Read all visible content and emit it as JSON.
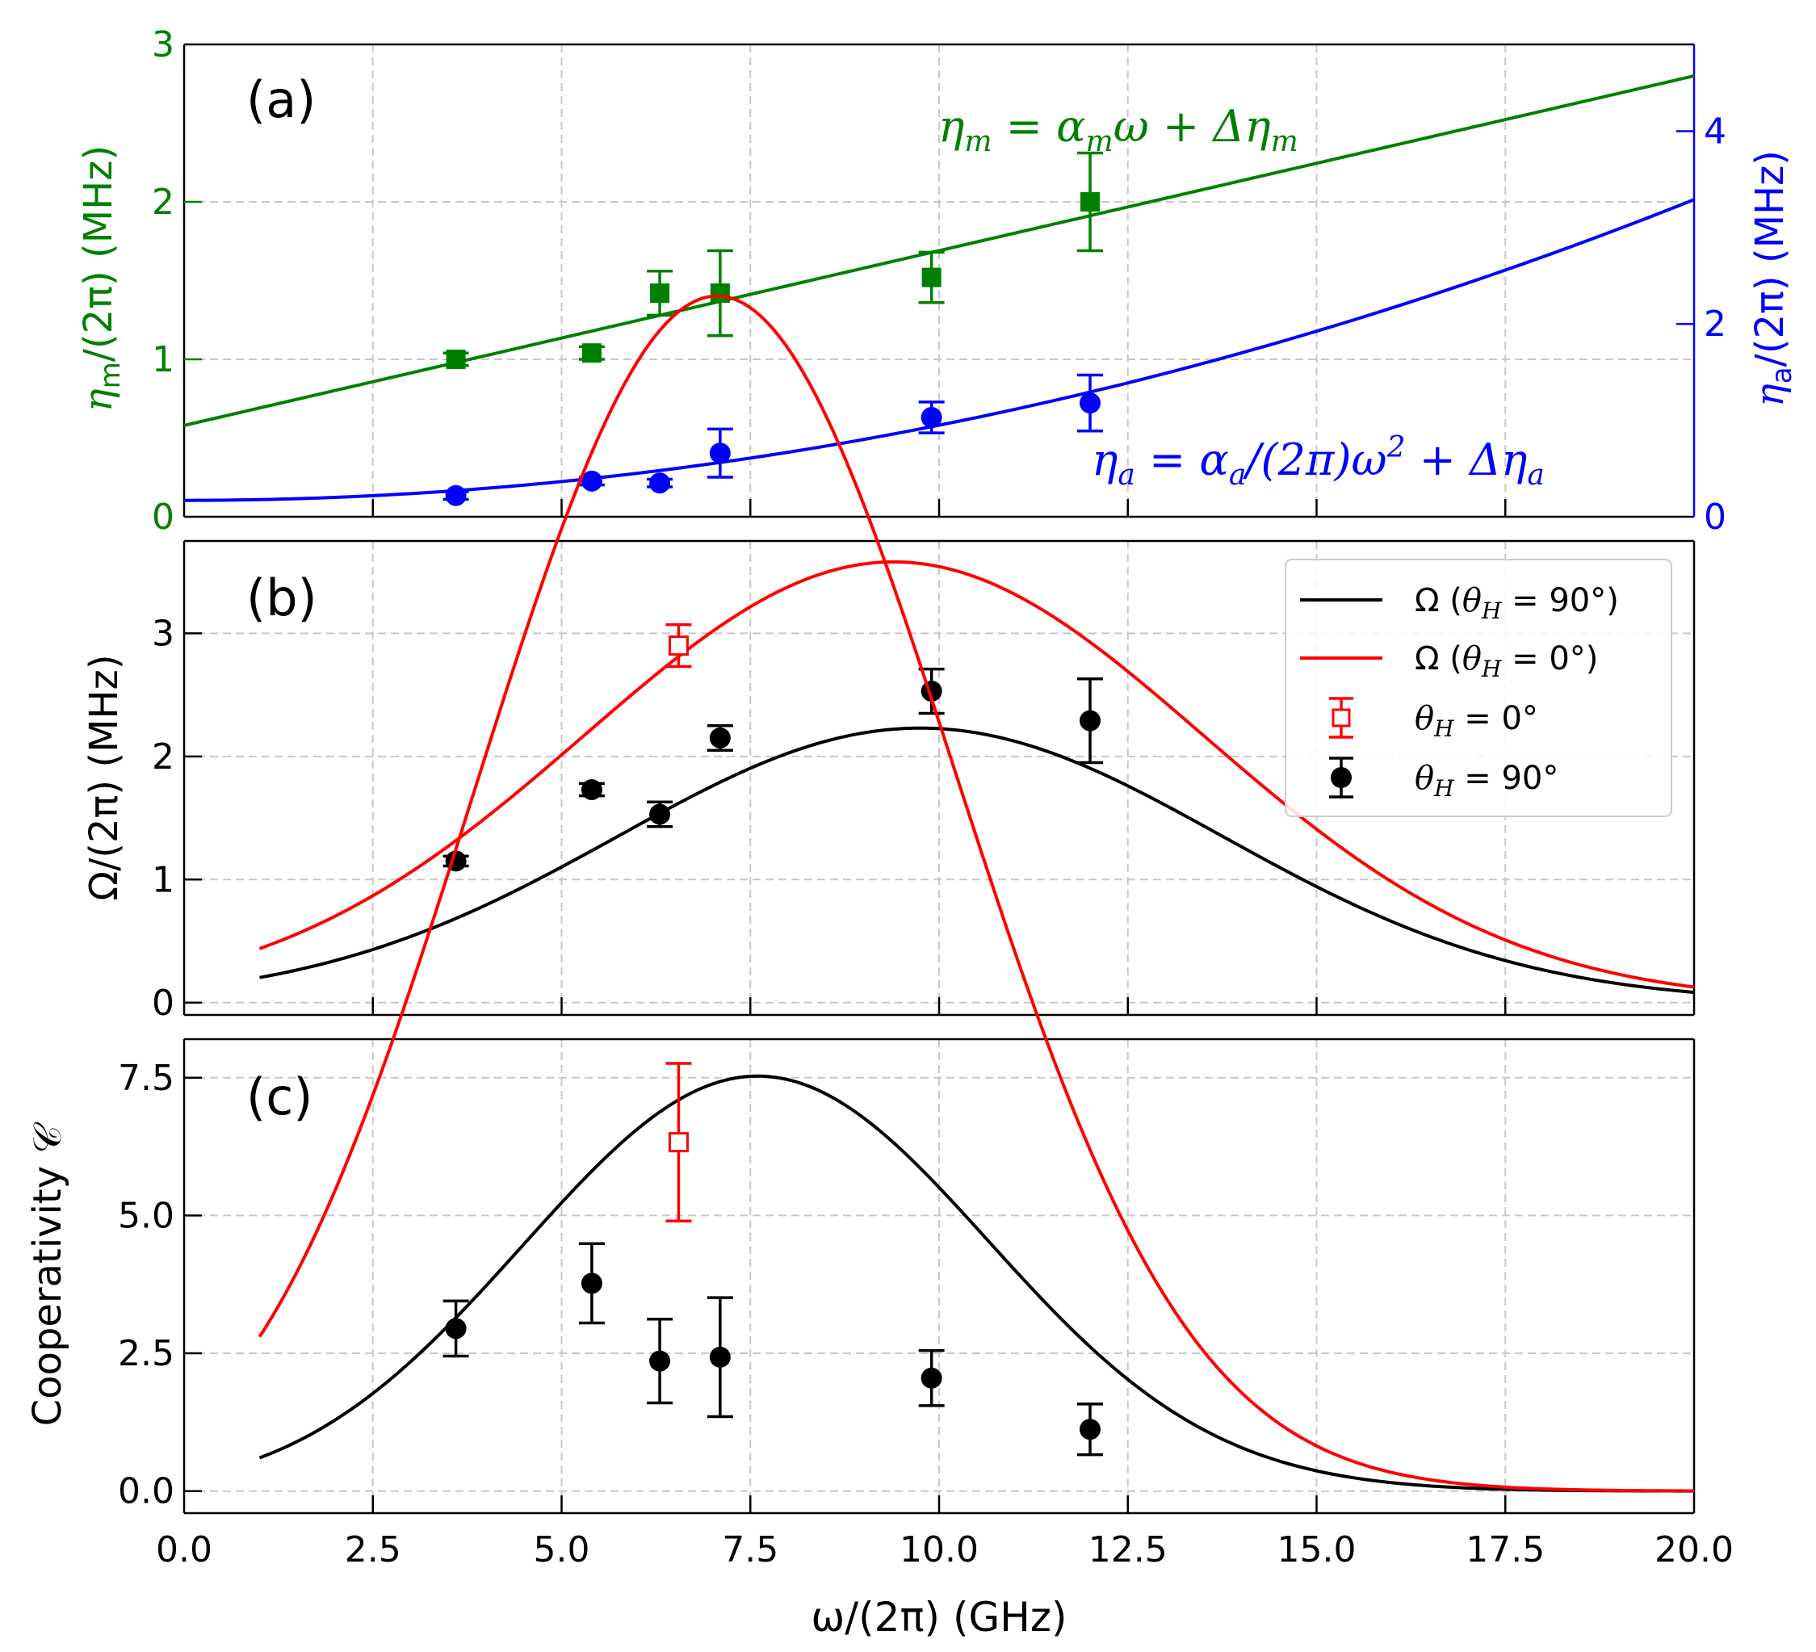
{
  "chart_data": [
    {
      "panel": "(a)",
      "type": "scatter",
      "xlim": [
        0,
        20
      ],
      "ylim": [
        0,
        3
      ],
      "ylim_right": [
        0,
        4.9
      ],
      "grid": true,
      "ylabel_left": {
        "main": "η",
        "sub": "m",
        "tail": "/(2π) (MHz)"
      },
      "ylabel_right": {
        "main": "η",
        "sub": "a",
        "tail": "/(2π) (MHz)"
      },
      "yticks_left": [
        "0",
        "1",
        "2",
        "3"
      ],
      "yticks_right": [
        "0",
        "2",
        "4"
      ],
      "annotations": {
        "eta_m_formula": "η_m = α_m ω + Δη_m",
        "eta_m_formula_parts": [
          "η",
          "m",
          " = α",
          "m",
          "ω + Δη",
          "m"
        ],
        "eta_a_formula": "η_a = α_a/(2π) ω^2 + Δη_a",
        "eta_a_formula_parts": [
          "η",
          "a",
          " = α",
          "a",
          "/(2π)ω",
          "2",
          " + Δη",
          "a"
        ]
      },
      "colors": {
        "eta_m": "#008000",
        "eta_a": "#0000ff"
      },
      "series": [
        {
          "name": "η_m data",
          "axis": "left",
          "marker": "square",
          "x": [
            3.6,
            5.4,
            6.3,
            7.1,
            9.9,
            12.0
          ],
          "y": [
            1.0,
            1.04,
            1.42,
            1.42,
            1.52,
            2.0
          ],
          "err": [
            0.04,
            0.04,
            0.14,
            0.27,
            0.16,
            0.31
          ]
        },
        {
          "name": "η_a data",
          "axis": "right",
          "marker": "circle",
          "x": [
            3.6,
            5.4,
            6.3,
            7.1,
            9.9,
            12.0
          ],
          "y": [
            0.22,
            0.37,
            0.35,
            0.66,
            1.03,
            1.18
          ],
          "err": [
            0.04,
            0.04,
            0.04,
            0.25,
            0.16,
            0.29
          ]
        },
        {
          "name": "η_m fit",
          "axis": "left",
          "type": "line",
          "fit": "linear",
          "intercept": 0.58,
          "slope": 0.111
        },
        {
          "name": "η_a fit",
          "axis": "right",
          "type": "line",
          "fit": "quadratic",
          "c0": 0.17,
          "c2": 0.0078
        }
      ]
    },
    {
      "panel": "(b)",
      "type": "line",
      "xlim": [
        0,
        20
      ],
      "ylim": [
        -0.1,
        3.75
      ],
      "grid": true,
      "ylabel": "Ω/(2π) (MHz)",
      "yticks": [
        "0",
        "1",
        "2",
        "3"
      ],
      "legend": {
        "position": "top-right",
        "entries": [
          "Ω (θ_H = 90°)",
          "Ω (θ_H = 0°)",
          "θ_H = 0°",
          "θ_H = 90°"
        ]
      },
      "legend_parts": [
        {
          "a": "Ω (",
          "sym": "θ",
          "sub": "H",
          "b": " = 90°)"
        },
        {
          "a": "Ω (",
          "sym": "θ",
          "sub": "H",
          "b": " = 0°)"
        },
        {
          "a": "",
          "sym": "θ",
          "sub": "H",
          "b": " = 0°"
        },
        {
          "a": "",
          "sym": "θ",
          "sub": "H",
          "b": " = 90°"
        }
      ],
      "colors": {
        "theta90": "#000000",
        "theta0": "#ff0000"
      },
      "series": [
        {
          "name": "Ω (θ_H = 90°)",
          "type": "line",
          "fit": "gaussian",
          "peak_x": 9.75,
          "peak_y": 2.23,
          "sigma": 4.0,
          "x_range": [
            1.0,
            20.0
          ]
        },
        {
          "name": "Ω (θ_H = 0°)",
          "type": "line",
          "fit": "gaussian",
          "peak_x": 9.4,
          "peak_y": 3.58,
          "sigma": 4.1,
          "x_range": [
            1.0,
            20.0
          ]
        },
        {
          "name": "θ_H = 0°",
          "marker": "open-square",
          "x": [
            6.55
          ],
          "y": [
            2.9
          ],
          "err": [
            0.17
          ]
        },
        {
          "name": "θ_H = 90°",
          "marker": "circle",
          "x": [
            3.6,
            5.4,
            6.3,
            7.1,
            9.9,
            12.0
          ],
          "y": [
            1.15,
            1.73,
            1.53,
            2.15,
            2.53,
            2.29
          ],
          "err": [
            0.04,
            0.05,
            0.1,
            0.1,
            0.18,
            0.34
          ]
        }
      ]
    },
    {
      "panel": "(c)",
      "type": "line",
      "xlim": [
        0,
        20
      ],
      "ylim": [
        -0.4,
        8.2
      ],
      "grid": true,
      "xlabel": "ω/(2π) (GHz)",
      "ylabel": "Cooperativity 𝒞",
      "xticks": [
        "0.0",
        "2.5",
        "5.0",
        "7.5",
        "10.0",
        "12.5",
        "15.0",
        "17.5",
        "20.0"
      ],
      "yticks": [
        "0.0",
        "2.5",
        "5.0",
        "7.5"
      ],
      "colors": {
        "theta90": "#000000",
        "theta0": "#ff0000"
      },
      "series": [
        {
          "name": "C (θ_H = 90°)",
          "type": "line",
          "fit": "Ω²/(η_m η_a)",
          "scale": 1.0,
          "x_range": [
            1.0,
            20.0
          ]
        },
        {
          "name": "C (θ_H = 0°)",
          "type": "line",
          "fit": "Ω²/(η_m η_a)",
          "scale": 2.58,
          "x_range": [
            1.0,
            20.0
          ]
        },
        {
          "name": "θ_H = 0°",
          "marker": "open-square",
          "x": [
            6.55
          ],
          "y": [
            6.33
          ],
          "err": [
            1.43
          ]
        },
        {
          "name": "θ_H = 90°",
          "marker": "circle",
          "x": [
            3.6,
            5.4,
            6.3,
            7.1,
            9.9,
            12.0
          ],
          "y": [
            2.95,
            3.77,
            2.36,
            2.43,
            2.05,
            1.12
          ],
          "err": [
            0.5,
            0.72,
            0.76,
            1.08,
            0.5,
            0.46
          ]
        }
      ]
    }
  ],
  "panel_labels": [
    "(a)",
    "(b)",
    "(c)"
  ]
}
